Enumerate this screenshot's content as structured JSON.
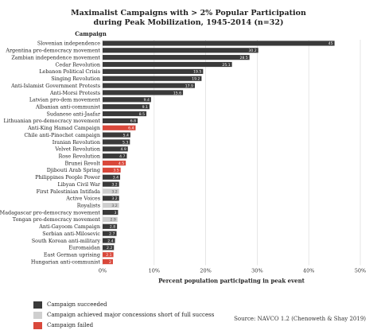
{
  "chart_data": {
    "type": "bar",
    "orientation": "horizontal",
    "title": "Maximalist Campaigns with > 2% Popular Participation",
    "subtitle": "during Peak Mobilization, 1945-2014 (n=32)",
    "ylabel": "Campaign",
    "xlabel": "Percent population participating in peak event",
    "xlim": [
      0,
      50
    ],
    "xticks": [
      "0%",
      "10%",
      "20%",
      "30%",
      "40%",
      "50%"
    ],
    "grid": true,
    "bars": [
      {
        "label": "Slovenian independence",
        "value": 45,
        "display": "45",
        "outcome": "succeeded"
      },
      {
        "label": "Argentina pro-democracy movement",
        "value": 30.2,
        "display": "30.2",
        "outcome": "succeeded"
      },
      {
        "label": "Zambian independence movement",
        "value": 28.5,
        "display": "28.5",
        "outcome": "succeeded"
      },
      {
        "label": "Cedar Revolution",
        "value": 25.1,
        "display": "25.1",
        "outcome": "succeeded"
      },
      {
        "label": "Lebanon Political Crisis",
        "value": 19.5,
        "display": "19.5",
        "outcome": "succeeded"
      },
      {
        "label": "Singing Revolution",
        "value": 19.2,
        "display": "19.2",
        "outcome": "succeeded"
      },
      {
        "label": "Anti-Islamist Government Protests",
        "value": 17.9,
        "display": "17.9",
        "outcome": "succeeded"
      },
      {
        "label": "Anti-Morsi Protests",
        "value": 15.6,
        "display": "15.6",
        "outcome": "succeeded"
      },
      {
        "label": "Latvian pro-dem movement",
        "value": 9.4,
        "display": "9.4",
        "outcome": "succeeded"
      },
      {
        "label": "Albanian anti-communist",
        "value": 9.1,
        "display": "9.1",
        "outcome": "succeeded"
      },
      {
        "label": "Sudanese anti-Jaafar",
        "value": 8.5,
        "display": "8.5",
        "outcome": "succeeded"
      },
      {
        "label": "Lithuanian pro-democracy movement",
        "value": 6.8,
        "display": "6.8",
        "outcome": "succeeded"
      },
      {
        "label": "Anti-King Hamad Campaign",
        "value": 6.4,
        "display": "6.4",
        "outcome": "failed"
      },
      {
        "label": "Chile anti-Pinochet campaign",
        "value": 5.4,
        "display": "5.4",
        "outcome": "succeeded"
      },
      {
        "label": "Iranian Revolution",
        "value": 5.3,
        "display": "5.3",
        "outcome": "succeeded"
      },
      {
        "label": "Velvet Revolution",
        "value": 4.9,
        "display": "4.9",
        "outcome": "succeeded"
      },
      {
        "label": "Rose Revolution",
        "value": 4.7,
        "display": "4.7",
        "outcome": "succeeded"
      },
      {
        "label": "Brunei Revolt",
        "value": 4.5,
        "display": "4.5",
        "outcome": "failed"
      },
      {
        "label": "Djibouti Arab Spring",
        "value": 3.5,
        "display": "3.5",
        "outcome": "failed"
      },
      {
        "label": "Philippines People Power",
        "value": 3.4,
        "display": "3.4",
        "outcome": "succeeded"
      },
      {
        "label": "Libyan Civil War",
        "value": 3.2,
        "display": "3.2",
        "outcome": "succeeded"
      },
      {
        "label": "First Palestinian Intifada",
        "value": 3.2,
        "display": "3.2",
        "outcome": "partial"
      },
      {
        "label": "Active Voices",
        "value": 3.2,
        "display": "3.2",
        "outcome": "succeeded"
      },
      {
        "label": "Royalists",
        "value": 3.2,
        "display": "3.2",
        "outcome": "partial"
      },
      {
        "label": "Madagascar pro-democracy movement",
        "value": 3,
        "display": "3",
        "outcome": "succeeded"
      },
      {
        "label": "Tongan pro-democracy movement",
        "value": 2.9,
        "display": "2.9",
        "outcome": "partial"
      },
      {
        "label": "Anti-Gayoom Campaign",
        "value": 2.8,
        "display": "2.8",
        "outcome": "succeeded"
      },
      {
        "label": "Serbian anti-Milosevic",
        "value": 2.7,
        "display": "2.7",
        "outcome": "succeeded"
      },
      {
        "label": "South Korean anti-military",
        "value": 2.4,
        "display": "2.4",
        "outcome": "succeeded"
      },
      {
        "label": "Euromaidan",
        "value": 2.2,
        "display": "2.2",
        "outcome": "succeeded"
      },
      {
        "label": "East German uprising",
        "value": 2.1,
        "display": "2.1",
        "outcome": "failed"
      },
      {
        "label": "Hungarian anti-communist",
        "value": 2,
        "display": "2",
        "outcome": "failed"
      }
    ],
    "legend": {
      "placement": "bottom-left",
      "items": [
        {
          "key": "succeeded",
          "label": "Campaign succeeded",
          "color": "#3a3a3a"
        },
        {
          "key": "partial",
          "label": "Campaign achieved major concessions short of full success",
          "color": "#cfcfcf"
        },
        {
          "key": "failed",
          "label": "Campaign failed",
          "color": "#d9483b"
        }
      ]
    },
    "source": "Source: NAVCO 1.2 (Chenoweth & Shay 2019)"
  }
}
